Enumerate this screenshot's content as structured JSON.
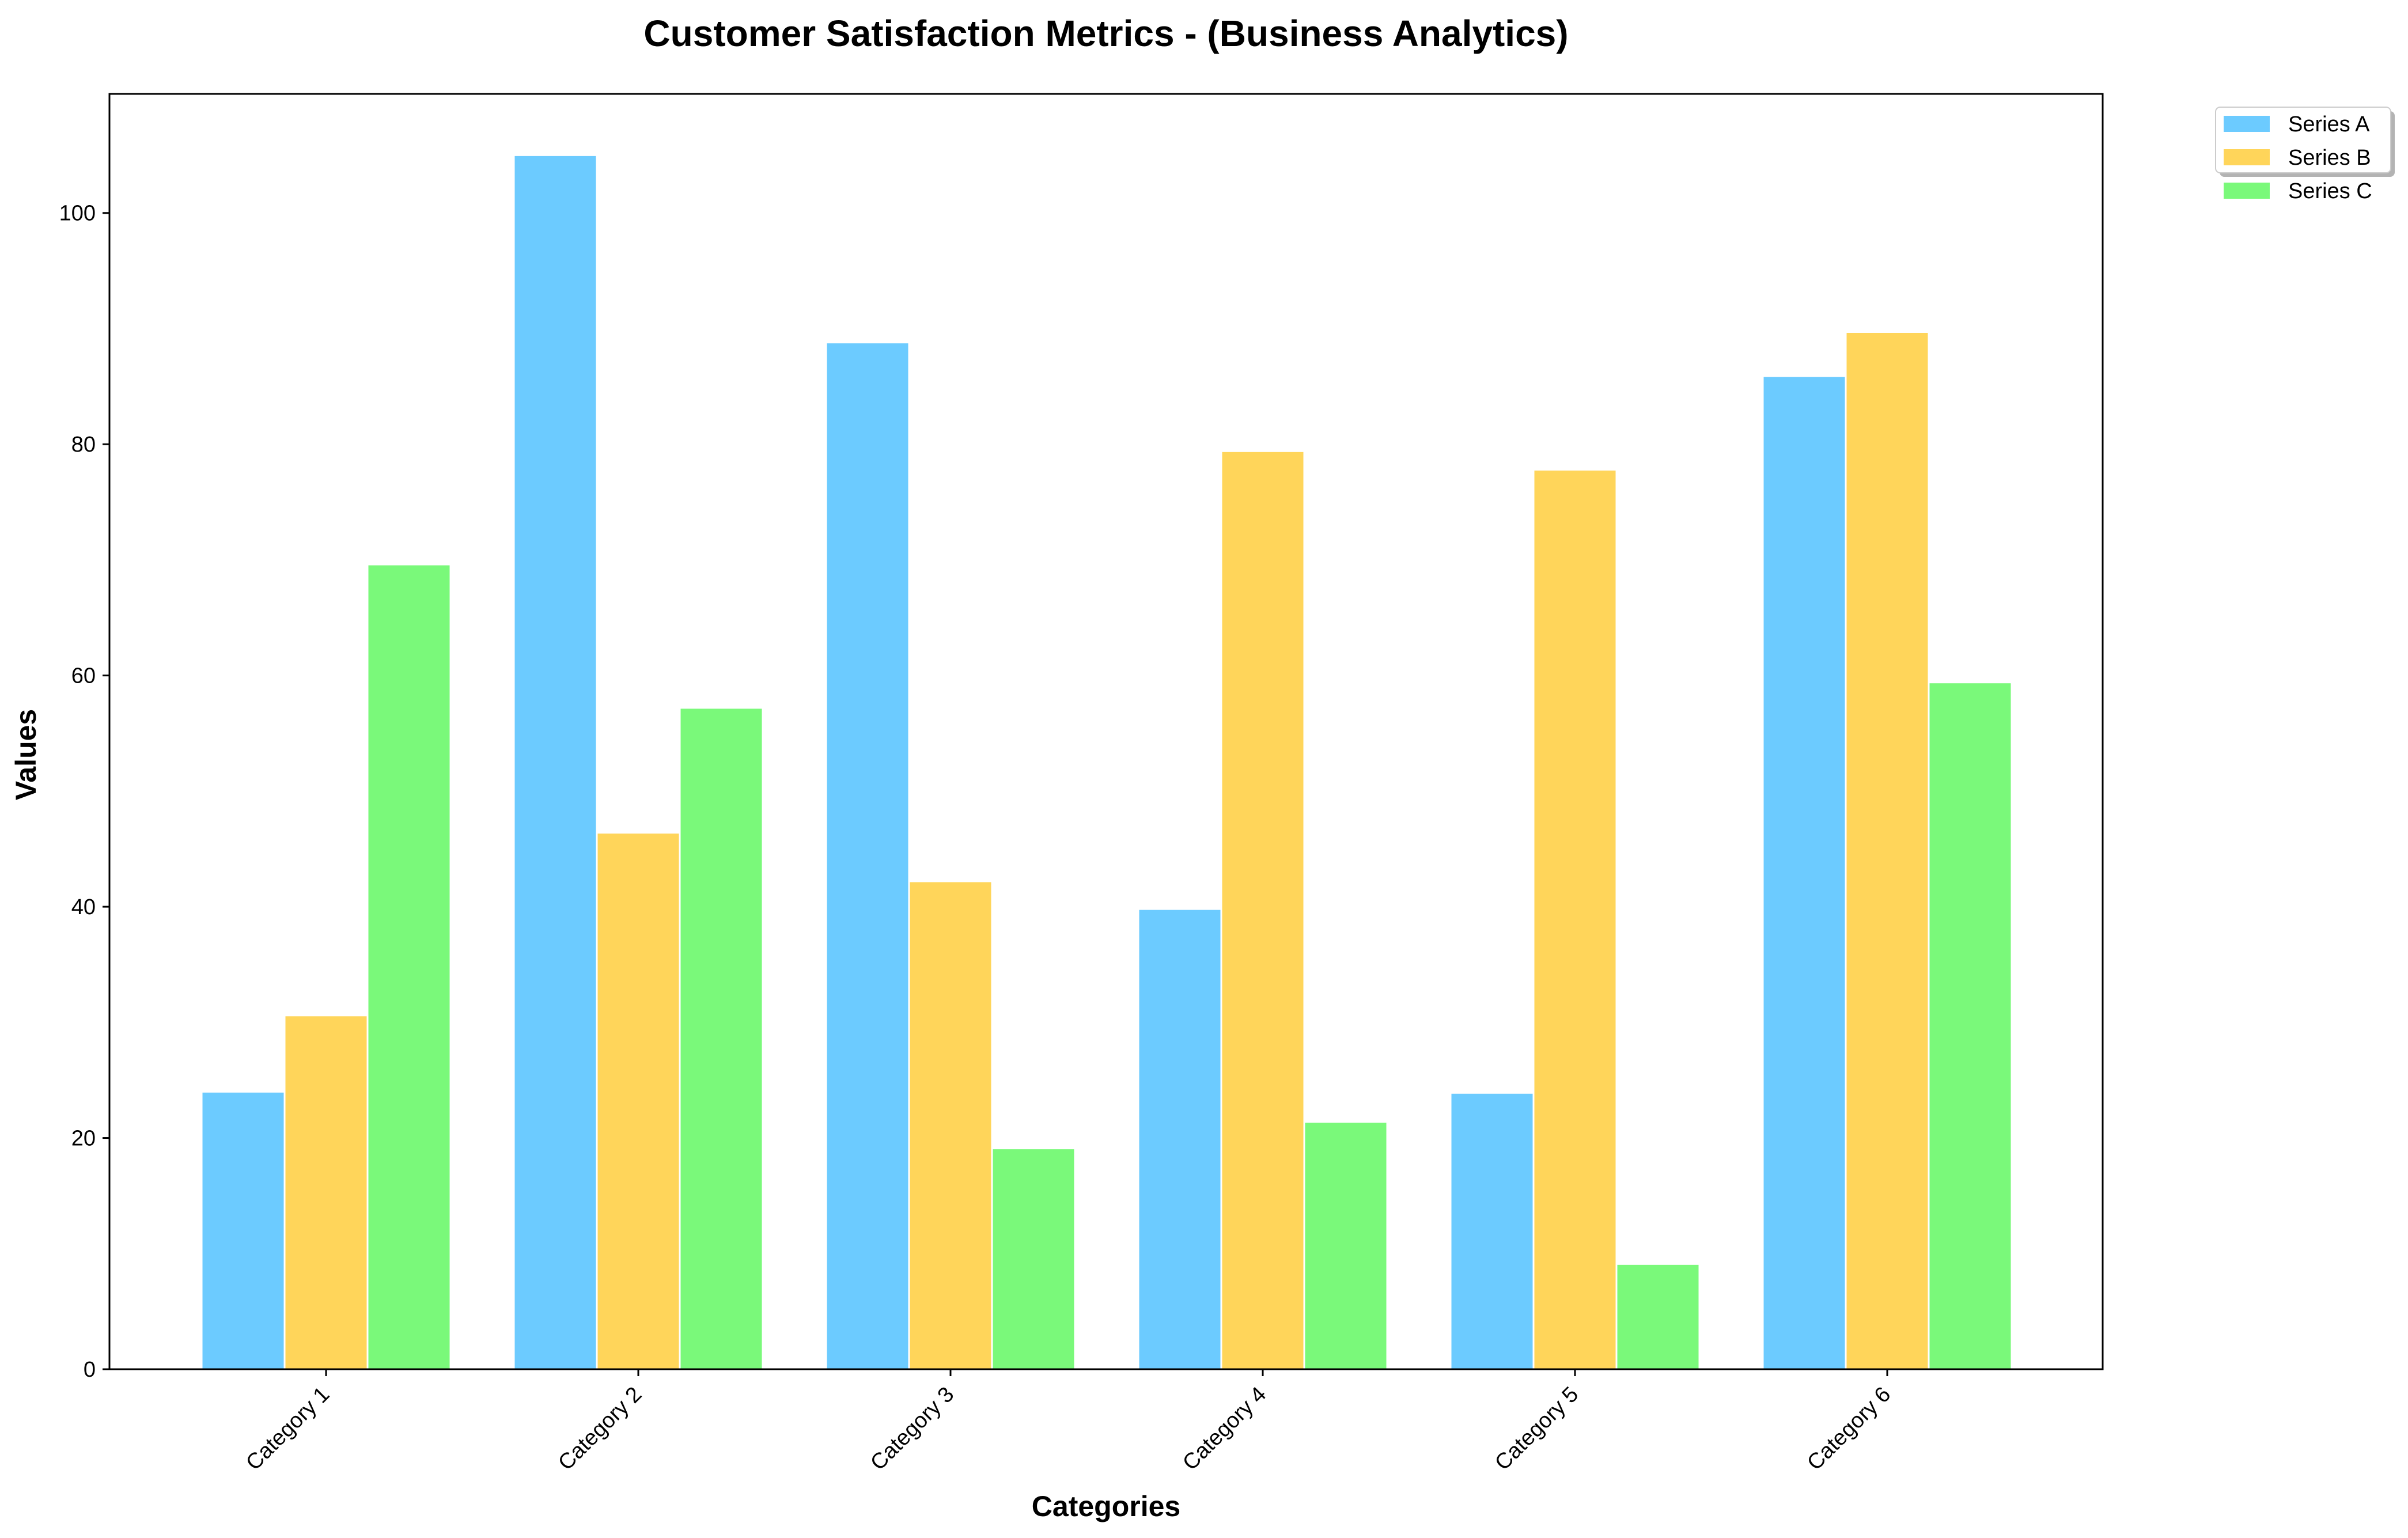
{
  "chart_data": {
    "type": "bar",
    "title": "Customer Satisfaction Metrics - (Business Analytics)",
    "xlabel": "Categories",
    "ylabel": "Values",
    "categories": [
      "Category 1",
      "Category 2",
      "Category 3",
      "Category 4",
      "Category 5",
      "Category 6"
    ],
    "series": [
      {
        "name": "Series A",
        "color": "#6ccbff",
        "values": [
          24.0,
          105.0,
          88.8,
          39.8,
          23.9,
          85.9
        ]
      },
      {
        "name": "Series B",
        "color": "#ffd55a",
        "values": [
          30.6,
          46.4,
          42.2,
          79.4,
          77.8,
          89.7
        ]
      },
      {
        "name": "Series C",
        "color": "#7af97a",
        "values": [
          69.6,
          57.2,
          19.1,
          21.4,
          9.1,
          59.4
        ]
      }
    ],
    "ylim": [
      0,
      110.3
    ],
    "yticks": [
      0,
      20,
      40,
      60,
      80,
      100
    ],
    "grid": false,
    "legend_position": "outside-top-right"
  }
}
